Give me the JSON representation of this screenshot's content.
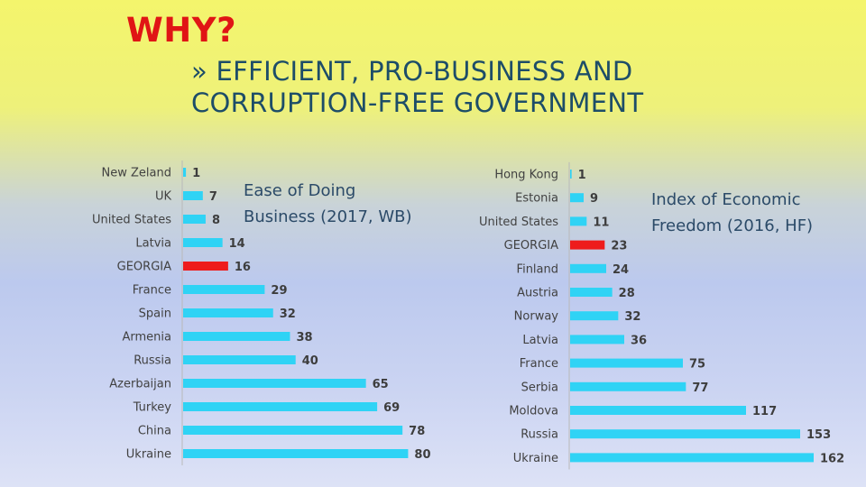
{
  "slide": {
    "title": "WHY?",
    "subtitle_line1": "» EFFICIENT, PRO-BUSINESS AND",
    "subtitle_line2": "CORRUPTION-FREE GOVERNMENT"
  },
  "colors": {
    "bar": "#2fd3f5",
    "highlight": "#ee1c1c",
    "axis": "#b9b9b9"
  },
  "chart_data": [
    {
      "type": "bar",
      "orientation": "horizontal",
      "label_line1": "Ease of Doing",
      "label_line2": "Business (2017, WB)",
      "categories": [
        "New Zeland",
        "UK",
        "United States",
        "Latvia",
        "GEORGIA",
        "France",
        "Spain",
        "Armenia",
        "Russia",
        "Azerbaijan",
        "Turkey",
        "China",
        "Ukraine"
      ],
      "values": [
        1,
        7,
        8,
        14,
        16,
        29,
        32,
        38,
        40,
        65,
        69,
        78,
        80
      ],
      "highlight": "GEORGIA",
      "xlim": [
        0,
        85
      ]
    },
    {
      "type": "bar",
      "orientation": "horizontal",
      "label_line1": "Index of Economic",
      "label_line2": "Freedom (2016, HF)",
      "categories": [
        "Hong Kong",
        "Estonia",
        "United States",
        "GEORGIA",
        "Finland",
        "Austria",
        "Norway",
        "Latvia",
        "France",
        "Serbia",
        "Moldova",
        "Russia",
        "Ukraine"
      ],
      "values": [
        1,
        9,
        11,
        23,
        24,
        28,
        32,
        36,
        75,
        77,
        117,
        153,
        162
      ],
      "highlight": "GEORGIA",
      "xlim": [
        0,
        165
      ]
    }
  ]
}
